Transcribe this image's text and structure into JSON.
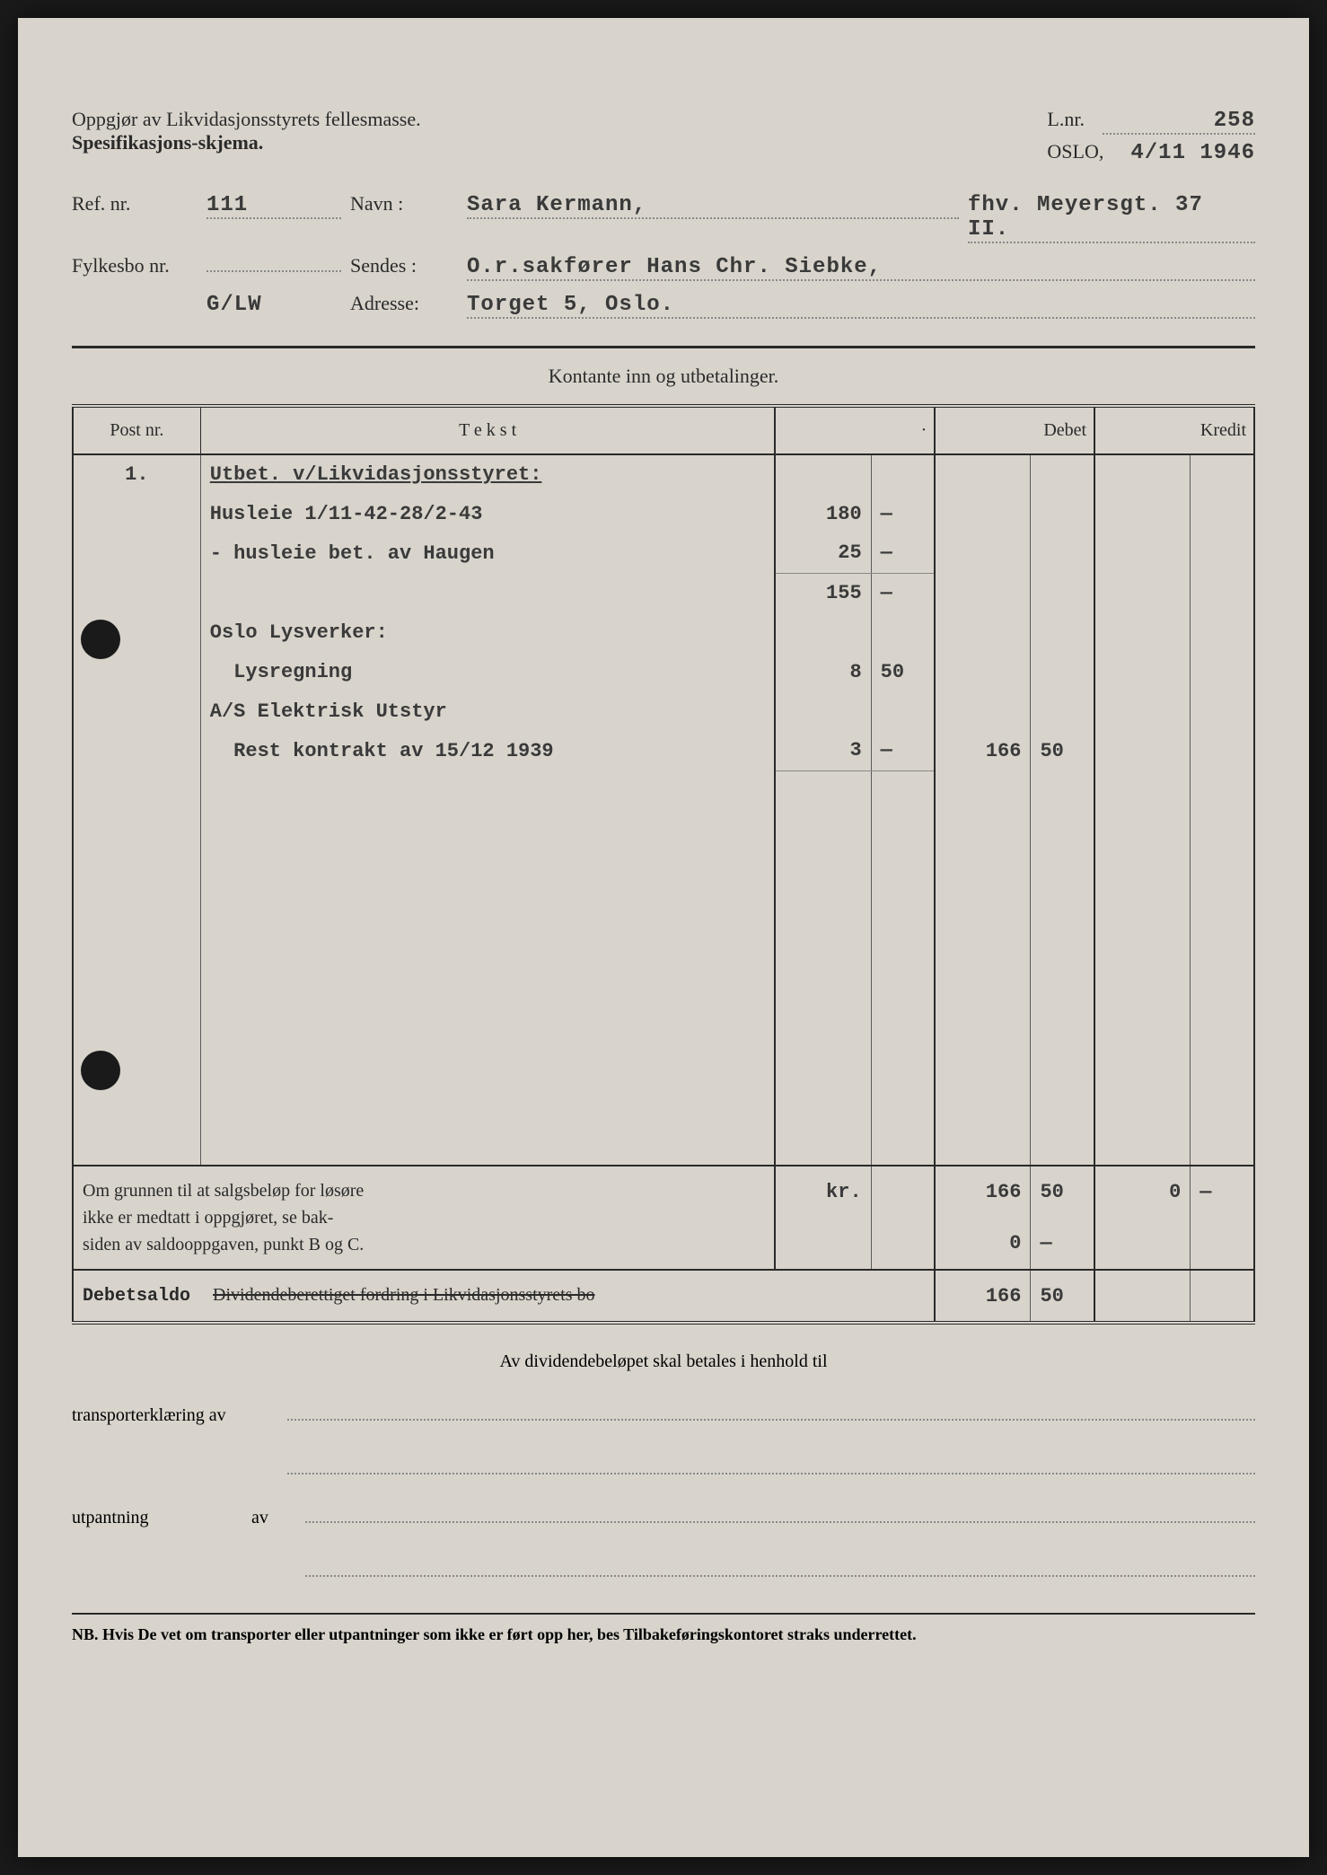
{
  "header": {
    "title1": "Oppgjør av Likvidasjonsstyrets fellesmasse.",
    "title2": "Spesifikasjons-skjema.",
    "lnr_label": "L.nr.",
    "lnr_value": "258",
    "place": "OSLO,",
    "date": "4/11 1946"
  },
  "fields": {
    "ref_label": "Ref. nr.",
    "ref_value": "111",
    "navn_label": "Navn :",
    "navn_value": "Sara Kermann,",
    "navn_extra": "fhv. Meyersgt. 37 II.",
    "fylkes_label": "Fylkesbo nr.",
    "fylkes_value": "",
    "sendes_label": "Sendes :",
    "sendes_value": "O.r.sakfører Hans Chr. Siebke,",
    "code": "G/LW",
    "adresse_label": "Adresse:",
    "adresse_value": "Torget 5, Oslo."
  },
  "section": {
    "title": "Kontante inn og utbetalinger.",
    "col_post": "Post nr.",
    "col_tekst": "T e k s t",
    "col_dot": "·",
    "col_debet": "Debet",
    "col_kredit": "Kredit"
  },
  "rows": [
    {
      "post": "1.",
      "tekst": "Utbet. v/Likvidasjonsstyret:",
      "a1": "",
      "a2": "",
      "d1": "",
      "d2": "",
      "k1": "",
      "k2": "",
      "u": true
    },
    {
      "post": "",
      "tekst": "Husleie 1/11-42-28/2-43",
      "a1": "180",
      "a2": "—",
      "d1": "",
      "d2": "",
      "k1": "",
      "k2": ""
    },
    {
      "post": "",
      "tekst": "- husleie bet. av Haugen",
      "a1": "25",
      "a2": "—",
      "d1": "",
      "d2": "",
      "k1": "",
      "k2": "",
      "ruled": true
    },
    {
      "post": "",
      "tekst": "",
      "a1": "155",
      "a2": "—",
      "d1": "",
      "d2": "",
      "k1": "",
      "k2": ""
    },
    {
      "post": "",
      "tekst": "Oslo Lysverker:",
      "a1": "",
      "a2": "",
      "d1": "",
      "d2": "",
      "k1": "",
      "k2": ""
    },
    {
      "post": "",
      "tekst": "  Lysregning",
      "a1": "8",
      "a2": "50",
      "d1": "",
      "d2": "",
      "k1": "",
      "k2": ""
    },
    {
      "post": "",
      "tekst": "A/S Elektrisk Utstyr",
      "a1": "",
      "a2": "",
      "d1": "",
      "d2": "",
      "k1": "",
      "k2": ""
    },
    {
      "post": "",
      "tekst": "  Rest kontrakt av 15/12 1939",
      "a1": "3",
      "a2": "—",
      "d1": "166",
      "d2": "50",
      "k1": "",
      "k2": "",
      "ruled": true
    }
  ],
  "summary": {
    "note_line1": "Om grunnen til at salgsbeløp for løsøre",
    "note_line2": "ikke er medtatt i oppgjøret, se bak-",
    "note_line3": "siden av saldooppgaven, punkt B og C.",
    "kr": "kr.",
    "s1_d1": "166",
    "s1_d2": "50",
    "s1_k1": "0",
    "s1_k2": "—",
    "s2_d1": "0",
    "s2_d2": "—",
    "debetsaldo": "Debetsaldo",
    "div_label": "Dividendeberettiget fordring i Likvidasjonsstyrets bo",
    "s3_d1": "166",
    "s3_d2": "50"
  },
  "footer": {
    "line": "Av dividendebeløpet skal betales i henhold til",
    "transp": "transporterklæring av",
    "utp": "utpantning",
    "av": "av",
    "nb": "NB. Hvis De vet om transporter eller utpantninger som ikke er ført opp her, bes Tilbakeføringskontoret straks underrettet."
  }
}
